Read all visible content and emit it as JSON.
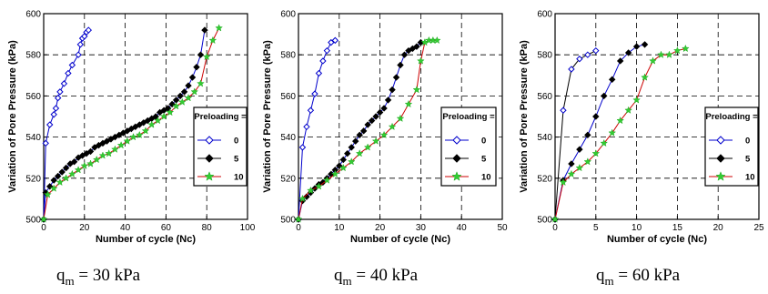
{
  "charts": [
    {
      "type": "line",
      "xlabel": "Number of cycle (Nc)",
      "ylabel": "Variation of Pore Pressure (kPa)",
      "xlim": [
        0,
        100
      ],
      "xticks": [
        0,
        20,
        40,
        60,
        80,
        100
      ],
      "ylim": [
        500,
        600
      ],
      "yticks": [
        500,
        520,
        540,
        560,
        580,
        600
      ],
      "grid": "dashed",
      "legend": {
        "title": "Preloading =",
        "position": "right",
        "entries": [
          {
            "label": "0",
            "color": "#0000cc",
            "marker": "diamond-open"
          },
          {
            "label": "5",
            "color": "#000000",
            "marker": "diamond-filled"
          },
          {
            "label": "10",
            "color": "#33cc33",
            "marker": "star"
          }
        ]
      },
      "caption": {
        "main": "q",
        "sub": "m",
        "rest": " = 30 kPa"
      },
      "series": [
        {
          "name": "0",
          "line_color": "#0000cc",
          "marker": "diamond-open",
          "x": [
            0,
            1,
            3,
            5,
            6,
            7,
            8,
            10,
            12,
            14,
            17,
            18,
            19,
            20,
            21,
            22
          ],
          "y": [
            500,
            537,
            546,
            551,
            554,
            559,
            562,
            566,
            571,
            575,
            580,
            585,
            588,
            589,
            591,
            592
          ]
        },
        {
          "name": "5",
          "line_color": "#0000cc",
          "marker": "diamond-filled",
          "x": [
            0,
            1,
            3,
            5,
            7,
            9,
            11,
            13,
            15,
            17,
            19,
            21,
            23,
            25,
            27,
            29,
            31,
            33,
            35,
            37,
            39,
            41,
            43,
            45,
            47,
            49,
            51,
            53,
            55,
            57,
            59,
            61,
            63,
            65,
            67,
            69,
            71,
            73,
            75,
            77,
            79
          ],
          "y": [
            500,
            513,
            516,
            519,
            521,
            523,
            525,
            527,
            528,
            530,
            531,
            532,
            533,
            535,
            536,
            537,
            538,
            539,
            540,
            541,
            542,
            543,
            544,
            545,
            546,
            547,
            548,
            549,
            550,
            552,
            553,
            554,
            556,
            558,
            560,
            562,
            565,
            569,
            574,
            580,
            592
          ]
        },
        {
          "name": "10",
          "line_color": "#cc0000",
          "marker": "star",
          "x": [
            0,
            2,
            5,
            8,
            11,
            14,
            17,
            20,
            23,
            26,
            29,
            32,
            35,
            38,
            41,
            44,
            47,
            50,
            53,
            56,
            59,
            62,
            65,
            68,
            71,
            74,
            77,
            80,
            83,
            86
          ],
          "y": [
            500,
            512,
            515,
            518,
            520,
            522,
            524,
            526,
            527,
            529,
            531,
            532,
            534,
            536,
            538,
            540,
            541,
            543,
            546,
            548,
            550,
            552,
            555,
            557,
            559,
            562,
            566,
            579,
            587,
            593
          ]
        }
      ]
    },
    {
      "type": "line",
      "xlabel": "Number of cycle (Nc)",
      "ylabel": "Variation of Pore Pressure (kPa)",
      "xlim": [
        0,
        50
      ],
      "xticks": [
        0,
        10,
        20,
        30,
        40,
        50
      ],
      "ylim": [
        500,
        600
      ],
      "yticks": [
        500,
        520,
        540,
        560,
        580,
        600
      ],
      "grid": "dashed",
      "legend": {
        "title": "Preloading =",
        "position": "right",
        "entries": [
          {
            "label": "0",
            "color": "#0000cc",
            "marker": "diamond-open"
          },
          {
            "label": "5",
            "color": "#000000",
            "marker": "diamond-filled"
          },
          {
            "label": "10",
            "color": "#33cc33",
            "marker": "star"
          }
        ]
      },
      "caption": {
        "main": "q",
        "sub": "m",
        "rest": " = 40 kPa"
      },
      "series": [
        {
          "name": "0",
          "line_color": "#0000cc",
          "marker": "diamond-open",
          "x": [
            0,
            1,
            2,
            3,
            4,
            5,
            6,
            7,
            8,
            9
          ],
          "y": [
            500,
            535,
            545,
            553,
            561,
            571,
            577,
            582,
            586,
            587
          ]
        },
        {
          "name": "5",
          "line_color": "#0000cc",
          "marker": "diamond-filled",
          "x": [
            0,
            1,
            2,
            3,
            4,
            5,
            6,
            7,
            8,
            9,
            10,
            11,
            12,
            13,
            14,
            15,
            16,
            17,
            18,
            19,
            20,
            21,
            22,
            23,
            24,
            25,
            26,
            27,
            28,
            29,
            30
          ],
          "y": [
            500,
            509,
            511,
            513,
            515,
            517,
            518,
            520,
            522,
            524,
            526,
            529,
            532,
            535,
            538,
            541,
            543,
            546,
            548,
            550,
            552,
            554,
            558,
            563,
            569,
            575,
            580,
            582,
            583,
            584,
            586
          ]
        },
        {
          "name": "10",
          "line_color": "#cc0000",
          "marker": "star",
          "x": [
            0,
            1,
            3,
            5,
            7,
            9,
            11,
            13,
            15,
            17,
            19,
            21,
            23,
            25,
            27,
            29,
            30,
            31,
            32,
            33,
            34
          ],
          "y": [
            500,
            510,
            514,
            516,
            519,
            522,
            525,
            528,
            532,
            535,
            538,
            541,
            545,
            549,
            556,
            563,
            577,
            586,
            587,
            587,
            587
          ]
        }
      ]
    },
    {
      "type": "line",
      "xlabel": "Number of cycle (Nc)",
      "ylabel": "Variation of Pore Pressure (kPa)",
      "xlim": [
        0,
        25
      ],
      "xticks": [
        0,
        5,
        10,
        15,
        20,
        25
      ],
      "ylim": [
        500,
        600
      ],
      "yticks": [
        500,
        520,
        540,
        560,
        580,
        600
      ],
      "grid": "dashed",
      "legend": {
        "title": "Preloading =",
        "position": "right",
        "entries": [
          {
            "label": "0",
            "color": "#0000cc",
            "marker": "diamond-open"
          },
          {
            "label": "5",
            "color": "#000000",
            "marker": "diamond-filled"
          },
          {
            "label": "10",
            "color": "#33cc33",
            "marker": "star"
          }
        ]
      },
      "caption": {
        "main": "q",
        "sub": "m",
        "rest": " = 60 kPa"
      },
      "series": [
        {
          "name": "0",
          "line_color": "#000000",
          "marker": "diamond-open",
          "x": [
            0,
            1,
            2,
            3,
            4,
            5
          ],
          "y": [
            500,
            553,
            573,
            578,
            580,
            582
          ]
        },
        {
          "name": "5",
          "line_color": "#0000cc",
          "marker": "diamond-filled",
          "x": [
            0,
            1,
            2,
            3,
            4,
            5,
            6,
            7,
            8,
            9,
            10,
            11
          ],
          "y": [
            500,
            519,
            527,
            534,
            541,
            550,
            560,
            568,
            577,
            581,
            584,
            585
          ]
        },
        {
          "name": "10",
          "line_color": "#cc0000",
          "marker": "star",
          "x": [
            0,
            1,
            2,
            3,
            4,
            5,
            6,
            7,
            8,
            9,
            10,
            11,
            12,
            13,
            14,
            15,
            16
          ],
          "y": [
            500,
            518,
            522,
            525,
            528,
            532,
            537,
            542,
            548,
            553,
            558,
            569,
            577,
            580,
            580,
            582,
            583
          ]
        }
      ]
    }
  ]
}
